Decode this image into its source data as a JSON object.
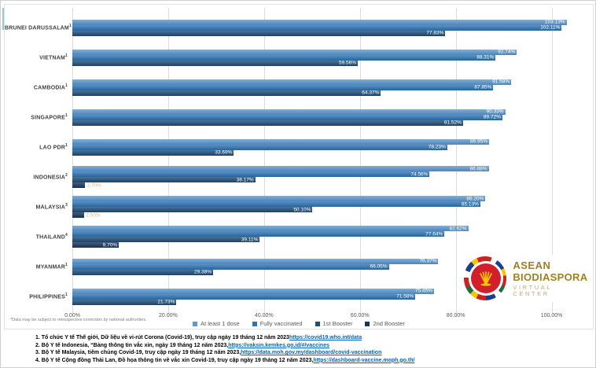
{
  "chart_data": {
    "type": "bar",
    "orientation": "horizontal",
    "title": "",
    "xlim": [
      0,
      105
    ],
    "grid": true,
    "legend_position": "bottom",
    "x_ticks": [
      "0.00%",
      "20.00%",
      "40.00%",
      "60.00%",
      "80.00%",
      "100.00%"
    ],
    "series": [
      {
        "key": "at-least-1-dose",
        "name": "At least 1 dose",
        "color": "#5b9bd5"
      },
      {
        "key": "fully-vaccinated",
        "name": "Fully vaccinated",
        "color": "#2e75b6"
      },
      {
        "key": "1st-booster",
        "name": "1st Booster",
        "color": "#1f4e79"
      },
      {
        "key": "2nd-booster",
        "name": "2nd Booster",
        "color": "#16365c"
      }
    ],
    "countries": [
      {
        "label": "BRUNEI DARUSSALAM",
        "sup": "1",
        "values": [
          103.13,
          102.11,
          77.83,
          null
        ]
      },
      {
        "label": "VIETNAM",
        "sup": "1",
        "values": [
          92.74,
          88.31,
          59.56,
          null
        ]
      },
      {
        "label": "CAMBODIA",
        "sup": "1",
        "values": [
          91.58,
          87.85,
          64.37,
          null
        ]
      },
      {
        "label": "SINGAPORE",
        "sup": "1",
        "values": [
          90.33,
          89.72,
          81.52,
          null
        ]
      },
      {
        "label": "LAO PDR",
        "sup": "1",
        "values": [
          86.95,
          78.23,
          33.69,
          null
        ]
      },
      {
        "label": "INDONESIA",
        "sup": "2",
        "values": [
          86.88,
          74.56,
          38.17,
          2.7
        ]
      },
      {
        "label": "MALAYSIA",
        "sup": "3",
        "values": [
          86.2,
          85.13,
          50.1,
          2.5
        ]
      },
      {
        "label": "THAILAND",
        "sup": "4",
        "values": [
          82.62,
          77.64,
          39.11,
          9.7
        ]
      },
      {
        "label": "MYANMAR",
        "sup": "1",
        "values": [
          76.37,
          66.05,
          29.38,
          null
        ]
      },
      {
        "label": "PHILIPPINES",
        "sup": "1",
        "values": [
          75.45,
          71.58,
          21.73,
          null
        ]
      }
    ]
  },
  "disclaimer": "*Data may be subject to retrospective correction by national authorities.",
  "logo": {
    "line1": "ASEAN",
    "line2": "BIODIASPORA",
    "line3": "VIRTUAL CENTER"
  },
  "footnotes": [
    {
      "text": "1. Tổ chức Y tế Thế giới, Dữ liệu về vi-rút Corona (Covid-19), truy cập ngày 19 tháng 12 năm 2023",
      "link": "https://covid19.who.int/data"
    },
    {
      "text": "2. Bộ Y tế Indonesia, “Bảng thông tin vắc xin, ngày 19 tháng 12 năm 2023,",
      "link": "https://vaksin.kemkes.go.id/#/vaccines"
    },
    {
      "text": "3. Bộ Y tế Malaysia, tiêm chủng Covid-19, truy cập ngày 19 tháng 12 năm 2023,",
      "link": "https://data.moh.gov.my/dashboard/covid-vaccination"
    },
    {
      "text": "4. Bộ Y tế Cộng đồng Thái Lan, Đồ họa thông tin về vắc xin Covid-19, truy cập ngày 19 tháng 12 năm 2023,",
      "link": "https://dashboard-vaccine.moph.go.th/"
    }
  ]
}
